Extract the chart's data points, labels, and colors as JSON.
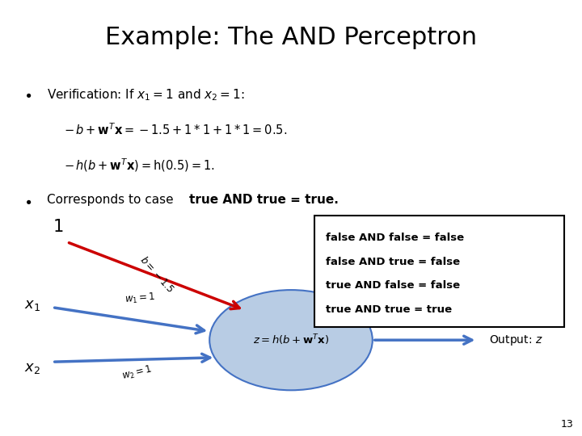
{
  "title": "Example: The AND Perceptron",
  "background_color": "#ffffff",
  "title_fontsize": 22,
  "title_color": "#000000",
  "box_text_lines": [
    "false AND false = false",
    "false AND true = false",
    "true AND false = false",
    "true AND true = true"
  ],
  "node_color": "#b8cce4",
  "node_edge_color": "#4472c4",
  "node_text": "$z = h(b + \\mathbf{w}^T\\mathbf{x})$",
  "arrow_blue": "#4472c4",
  "arrow_red": "#cc0000",
  "output_text": "Output: $z$",
  "slide_number": "13",
  "bias_label": "$b = -1.5$",
  "w1_label": "$w_1 = 1$",
  "w2_label": "$w_2 = 1$"
}
